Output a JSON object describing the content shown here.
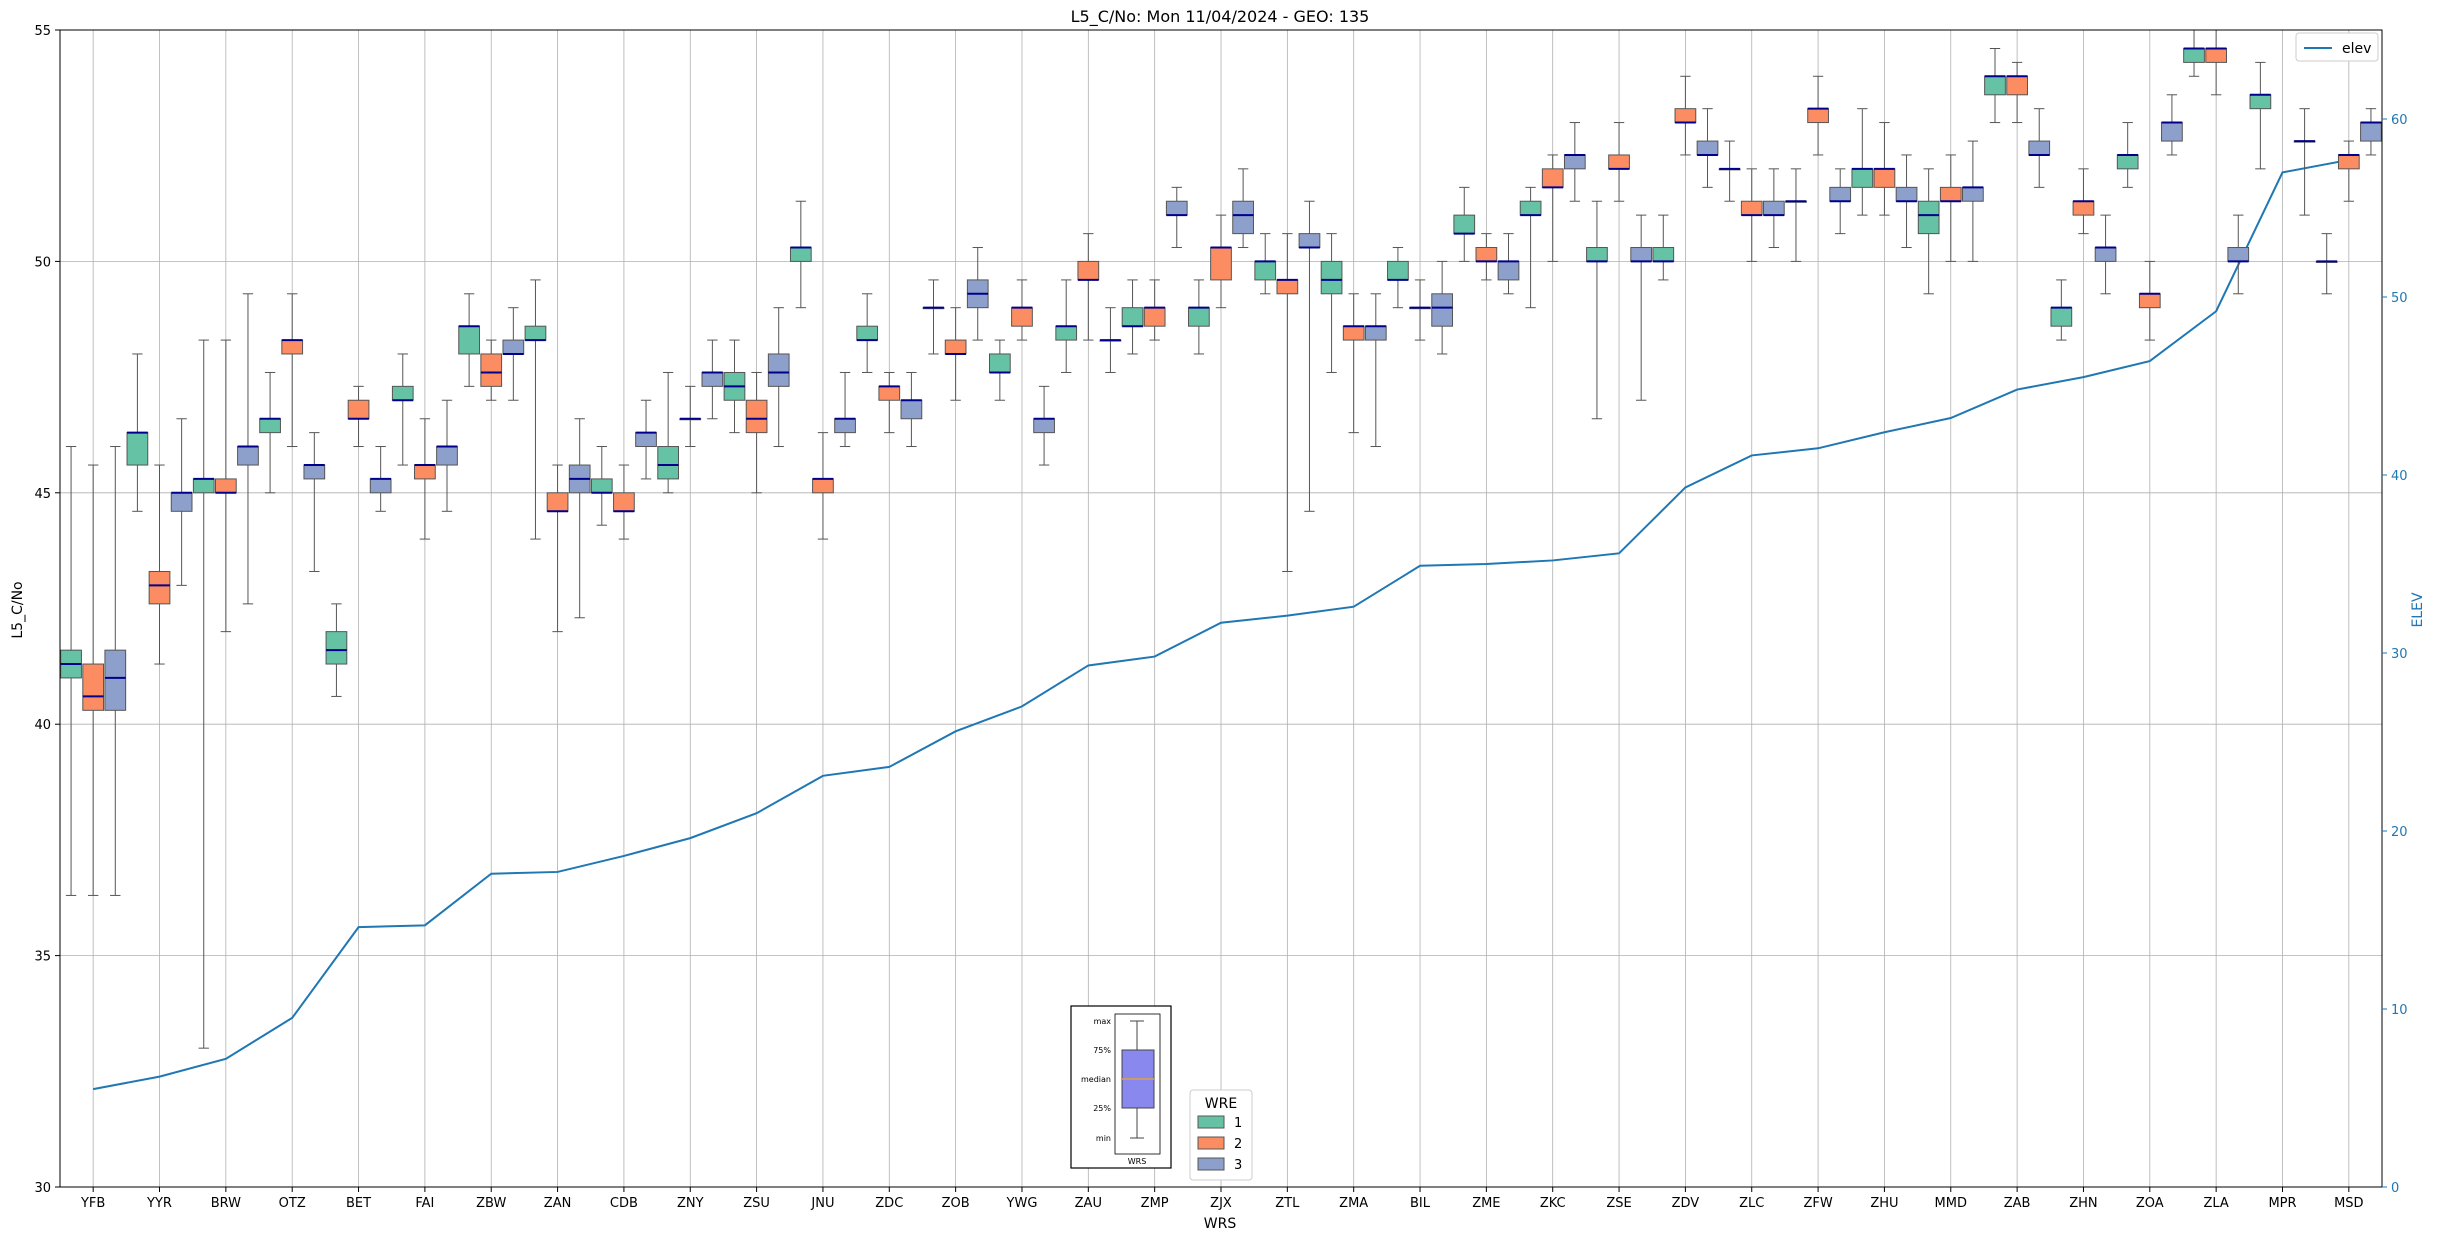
{
  "chart_data": {
    "type": "box",
    "title": "L5_C/No: Mon 11/04/2024 - GEO: 135",
    "xlabel": "WRS",
    "ylabel": "L5_C/No",
    "y2label": "ELEV",
    "ylim": [
      30,
      55
    ],
    "y2lim": [
      0,
      65
    ],
    "yticks": [
      30,
      35,
      40,
      45,
      50,
      55
    ],
    "y2ticks": [
      0,
      10,
      20,
      30,
      40,
      50,
      60
    ],
    "grid": true,
    "categories": [
      "YFB",
      "YYR",
      "BRW",
      "OTZ",
      "BET",
      "FAI",
      "ZBW",
      "ZAN",
      "CDB",
      "ZNY",
      "ZSU",
      "JNU",
      "ZDC",
      "ZOB",
      "YWG",
      "ZAU",
      "ZMP",
      "ZJX",
      "ZTL",
      "ZMA",
      "BIL",
      "ZME",
      "ZKC",
      "ZSE",
      "ZDV",
      "ZLC",
      "ZFW",
      "ZHU",
      "MMD",
      "ZAB",
      "ZHN",
      "ZOA",
      "ZLA",
      "MPR",
      "MSD"
    ],
    "wre_colors": {
      "1": "#66c2a5",
      "2": "#fc8d62",
      "3": "#8da0cb"
    },
    "legend": {
      "title": "WRE",
      "entries": [
        "1",
        "2",
        "3"
      ],
      "position": "bottom-center"
    },
    "elev_legend": {
      "label": "elev",
      "position": "top-right"
    },
    "elev_color": "#1f77b4",
    "elev": [
      5.5,
      6.2,
      7.2,
      9.5,
      14.6,
      14.7,
      17.6,
      17.7,
      18.6,
      19.6,
      21.0,
      23.1,
      23.6,
      25.6,
      27.0,
      29.3,
      29.8,
      31.7,
      32.1,
      32.6,
      34.9,
      35.0,
      35.2,
      35.6,
      39.3,
      41.1,
      41.5,
      42.4,
      43.2,
      44.8,
      45.5,
      46.4,
      49.2,
      57.0,
      57.7
    ],
    "boxes": [
      {
        "station": "YFB",
        "wre": "1",
        "min": 36.3,
        "q1": 41.0,
        "median": 41.3,
        "q3": 41.6,
        "max": 46.0
      },
      {
        "station": "YFB",
        "wre": "2",
        "min": 36.3,
        "q1": 40.3,
        "median": 40.6,
        "q3": 41.3,
        "max": 45.6
      },
      {
        "station": "YFB",
        "wre": "3",
        "min": 36.3,
        "q1": 40.3,
        "median": 41.0,
        "q3": 41.6,
        "max": 46.0
      },
      {
        "station": "YYR",
        "wre": "1",
        "min": 44.6,
        "q1": 45.6,
        "median": 46.3,
        "q3": 46.3,
        "max": 48.0
      },
      {
        "station": "YYR",
        "wre": "2",
        "min": 41.3,
        "q1": 42.6,
        "median": 43.0,
        "q3": 43.3,
        "max": 45.6
      },
      {
        "station": "YYR",
        "wre": "3",
        "min": 43.0,
        "q1": 44.6,
        "median": 45.0,
        "q3": 45.0,
        "max": 46.6
      },
      {
        "station": "BRW",
        "wre": "1",
        "min": 33.0,
        "q1": 45.0,
        "median": 45.3,
        "q3": 45.3,
        "max": 48.3
      },
      {
        "station": "BRW",
        "wre": "2",
        "min": 42.0,
        "q1": 45.0,
        "median": 45.0,
        "q3": 45.3,
        "max": 48.3
      },
      {
        "station": "BRW",
        "wre": "3",
        "min": 42.6,
        "q1": 45.6,
        "median": 46.0,
        "q3": 46.0,
        "max": 49.3
      },
      {
        "station": "OTZ",
        "wre": "1",
        "min": 45.0,
        "q1": 46.3,
        "median": 46.6,
        "q3": 46.6,
        "max": 47.6
      },
      {
        "station": "OTZ",
        "wre": "2",
        "min": 46.0,
        "q1": 48.0,
        "median": 48.3,
        "q3": 48.3,
        "max": 49.3
      },
      {
        "station": "OTZ",
        "wre": "3",
        "min": 43.3,
        "q1": 45.3,
        "median": 45.6,
        "q3": 45.6,
        "max": 46.3
      },
      {
        "station": "BET",
        "wre": "1",
        "min": 40.6,
        "q1": 41.3,
        "median": 41.6,
        "q3": 42.0,
        "max": 42.6
      },
      {
        "station": "BET",
        "wre": "2",
        "min": 46.0,
        "q1": 46.6,
        "median": 46.6,
        "q3": 47.0,
        "max": 47.3
      },
      {
        "station": "BET",
        "wre": "3",
        "min": 44.6,
        "q1": 45.0,
        "median": 45.3,
        "q3": 45.3,
        "max": 46.0
      },
      {
        "station": "FAI",
        "wre": "1",
        "min": 45.6,
        "q1": 47.0,
        "median": 47.0,
        "q3": 47.3,
        "max": 48.0
      },
      {
        "station": "FAI",
        "wre": "2",
        "min": 44.0,
        "q1": 45.3,
        "median": 45.6,
        "q3": 45.6,
        "max": 46.6
      },
      {
        "station": "FAI",
        "wre": "3",
        "min": 44.6,
        "q1": 45.6,
        "median": 46.0,
        "q3": 46.0,
        "max": 47.0
      },
      {
        "station": "ZBW",
        "wre": "1",
        "min": 47.3,
        "q1": 48.0,
        "median": 48.6,
        "q3": 48.6,
        "max": 49.3
      },
      {
        "station": "ZBW",
        "wre": "2",
        "min": 47.0,
        "q1": 47.3,
        "median": 47.6,
        "q3": 48.0,
        "max": 48.3
      },
      {
        "station": "ZBW",
        "wre": "3",
        "min": 47.0,
        "q1": 48.0,
        "median": 48.0,
        "q3": 48.3,
        "max": 49.0
      },
      {
        "station": "ZAN",
        "wre": "1",
        "min": 44.0,
        "q1": 48.3,
        "median": 48.3,
        "q3": 48.6,
        "max": 49.6
      },
      {
        "station": "ZAN",
        "wre": "2",
        "min": 42.0,
        "q1": 44.6,
        "median": 44.6,
        "q3": 45.0,
        "max": 45.6
      },
      {
        "station": "ZAN",
        "wre": "3",
        "min": 42.3,
        "q1": 45.0,
        "median": 45.3,
        "q3": 45.6,
        "max": 46.6
      },
      {
        "station": "CDB",
        "wre": "1",
        "min": 44.3,
        "q1": 45.0,
        "median": 45.0,
        "q3": 45.3,
        "max": 46.0
      },
      {
        "station": "CDB",
        "wre": "2",
        "min": 44.0,
        "q1": 44.6,
        "median": 44.6,
        "q3": 45.0,
        "max": 45.6
      },
      {
        "station": "CDB",
        "wre": "3",
        "min": 45.3,
        "q1": 46.0,
        "median": 46.3,
        "q3": 46.3,
        "max": 47.0
      },
      {
        "station": "ZNY",
        "wre": "1",
        "min": 45.0,
        "q1": 45.3,
        "median": 45.6,
        "q3": 46.0,
        "max": 47.6
      },
      {
        "station": "ZNY",
        "wre": "2",
        "min": 46.0,
        "q1": 46.6,
        "median": 46.6,
        "q3": 46.6,
        "max": 47.3
      },
      {
        "station": "ZNY",
        "wre": "3",
        "min": 46.6,
        "q1": 47.3,
        "median": 47.6,
        "q3": 47.6,
        "max": 48.3
      },
      {
        "station": "ZSU",
        "wre": "1",
        "min": 46.3,
        "q1": 47.0,
        "median": 47.3,
        "q3": 47.6,
        "max": 48.3
      },
      {
        "station": "ZSU",
        "wre": "2",
        "min": 45.0,
        "q1": 46.3,
        "median": 46.6,
        "q3": 47.0,
        "max": 47.6
      },
      {
        "station": "ZSU",
        "wre": "3",
        "min": 46.0,
        "q1": 47.3,
        "median": 47.6,
        "q3": 48.0,
        "max": 49.0
      },
      {
        "station": "JNU",
        "wre": "1",
        "min": 49.0,
        "q1": 50.0,
        "median": 50.3,
        "q3": 50.3,
        "max": 51.3
      },
      {
        "station": "JNU",
        "wre": "2",
        "min": 44.0,
        "q1": 45.0,
        "median": 45.3,
        "q3": 45.3,
        "max": 46.3
      },
      {
        "station": "JNU",
        "wre": "3",
        "min": 46.0,
        "q1": 46.3,
        "median": 46.6,
        "q3": 46.6,
        "max": 47.6
      },
      {
        "station": "ZDC",
        "wre": "1",
        "min": 47.6,
        "q1": 48.3,
        "median": 48.3,
        "q3": 48.6,
        "max": 49.3
      },
      {
        "station": "ZDC",
        "wre": "2",
        "min": 46.3,
        "q1": 47.0,
        "median": 47.3,
        "q3": 47.3,
        "max": 47.6
      },
      {
        "station": "ZDC",
        "wre": "3",
        "min": 46.0,
        "q1": 46.6,
        "median": 47.0,
        "q3": 47.0,
        "max": 47.6
      },
      {
        "station": "ZOB",
        "wre": "1",
        "min": 48.0,
        "q1": 49.0,
        "median": 49.0,
        "q3": 49.0,
        "max": 49.6
      },
      {
        "station": "ZOB",
        "wre": "2",
        "min": 47.0,
        "q1": 48.0,
        "median": 48.0,
        "q3": 48.3,
        "max": 49.0
      },
      {
        "station": "ZOB",
        "wre": "3",
        "min": 48.3,
        "q1": 49.0,
        "median": 49.3,
        "q3": 49.6,
        "max": 50.3
      },
      {
        "station": "YWG",
        "wre": "1",
        "min": 47.0,
        "q1": 47.6,
        "median": 47.6,
        "q3": 48.0,
        "max": 48.3
      },
      {
        "station": "YWG",
        "wre": "2",
        "min": 48.3,
        "q1": 48.6,
        "median": 49.0,
        "q3": 49.0,
        "max": 49.6
      },
      {
        "station": "YWG",
        "wre": "3",
        "min": 45.6,
        "q1": 46.3,
        "median": 46.6,
        "q3": 46.6,
        "max": 47.3
      },
      {
        "station": "ZAU",
        "wre": "1",
        "min": 47.6,
        "q1": 48.3,
        "median": 48.6,
        "q3": 48.6,
        "max": 49.6
      },
      {
        "station": "ZAU",
        "wre": "2",
        "min": 48.3,
        "q1": 49.6,
        "median": 49.6,
        "q3": 50.0,
        "max": 50.6
      },
      {
        "station": "ZAU",
        "wre": "3",
        "min": 47.6,
        "q1": 48.3,
        "median": 48.3,
        "q3": 48.3,
        "max": 49.0
      },
      {
        "station": "ZMP",
        "wre": "1",
        "min": 48.0,
        "q1": 48.6,
        "median": 48.6,
        "q3": 49.0,
        "max": 49.6
      },
      {
        "station": "ZMP",
        "wre": "2",
        "min": 48.3,
        "q1": 48.6,
        "median": 49.0,
        "q3": 49.0,
        "max": 49.6
      },
      {
        "station": "ZMP",
        "wre": "3",
        "min": 50.3,
        "q1": 51.0,
        "median": 51.0,
        "q3": 51.3,
        "max": 51.6
      },
      {
        "station": "ZJX",
        "wre": "1",
        "min": 48.0,
        "q1": 48.6,
        "median": 49.0,
        "q3": 49.0,
        "max": 49.6
      },
      {
        "station": "ZJX",
        "wre": "2",
        "min": 49.0,
        "q1": 49.6,
        "median": 50.3,
        "q3": 50.3,
        "max": 51.0
      },
      {
        "station": "ZJX",
        "wre": "3",
        "min": 50.3,
        "q1": 50.6,
        "median": 51.0,
        "q3": 51.3,
        "max": 52.0
      },
      {
        "station": "ZTL",
        "wre": "1",
        "min": 49.3,
        "q1": 49.6,
        "median": 50.0,
        "q3": 50.0,
        "max": 50.6
      },
      {
        "station": "ZTL",
        "wre": "2",
        "min": 43.3,
        "q1": 49.3,
        "median": 49.6,
        "q3": 49.6,
        "max": 50.6
      },
      {
        "station": "ZTL",
        "wre": "3",
        "min": 44.6,
        "q1": 50.3,
        "median": 50.3,
        "q3": 50.6,
        "max": 51.3
      },
      {
        "station": "ZMA",
        "wre": "1",
        "min": 47.6,
        "q1": 49.3,
        "median": 49.6,
        "q3": 50.0,
        "max": 50.6
      },
      {
        "station": "ZMA",
        "wre": "2",
        "min": 46.3,
        "q1": 48.3,
        "median": 48.6,
        "q3": 48.6,
        "max": 49.3
      },
      {
        "station": "ZMA",
        "wre": "3",
        "min": 46.0,
        "q1": 48.3,
        "median": 48.6,
        "q3": 48.6,
        "max": 49.3
      },
      {
        "station": "BIL",
        "wre": "1",
        "min": 49.0,
        "q1": 49.6,
        "median": 49.6,
        "q3": 50.0,
        "max": 50.3
      },
      {
        "station": "BIL",
        "wre": "2",
        "min": 48.3,
        "q1": 49.0,
        "median": 49.0,
        "q3": 49.0,
        "max": 49.6
      },
      {
        "station": "BIL",
        "wre": "3",
        "min": 48.0,
        "q1": 48.6,
        "median": 49.0,
        "q3": 49.3,
        "max": 50.0
      },
      {
        "station": "ZME",
        "wre": "1",
        "min": 50.0,
        "q1": 50.6,
        "median": 50.6,
        "q3": 51.0,
        "max": 51.6
      },
      {
        "station": "ZME",
        "wre": "2",
        "min": 49.6,
        "q1": 50.0,
        "median": 50.0,
        "q3": 50.3,
        "max": 50.6
      },
      {
        "station": "ZME",
        "wre": "3",
        "min": 49.3,
        "q1": 49.6,
        "median": 50.0,
        "q3": 50.0,
        "max": 50.6
      },
      {
        "station": "ZKC",
        "wre": "1",
        "min": 49.0,
        "q1": 51.0,
        "median": 51.0,
        "q3": 51.3,
        "max": 51.6
      },
      {
        "station": "ZKC",
        "wre": "2",
        "min": 50.0,
        "q1": 51.6,
        "median": 51.6,
        "q3": 52.0,
        "max": 52.3
      },
      {
        "station": "ZKC",
        "wre": "3",
        "min": 51.3,
        "q1": 52.0,
        "median": 52.3,
        "q3": 52.3,
        "max": 53.0
      },
      {
        "station": "ZSE",
        "wre": "1",
        "min": 46.6,
        "q1": 50.0,
        "median": 50.0,
        "q3": 50.3,
        "max": 51.3
      },
      {
        "station": "ZSE",
        "wre": "2",
        "min": 51.3,
        "q1": 52.0,
        "median": 52.0,
        "q3": 52.3,
        "max": 53.0
      },
      {
        "station": "ZSE",
        "wre": "3",
        "min": 47.0,
        "q1": 50.0,
        "median": 50.0,
        "q3": 50.3,
        "max": 51.0
      },
      {
        "station": "ZDV",
        "wre": "1",
        "min": 49.6,
        "q1": 50.0,
        "median": 50.0,
        "q3": 50.3,
        "max": 51.0
      },
      {
        "station": "ZDV",
        "wre": "2",
        "min": 52.3,
        "q1": 53.0,
        "median": 53.0,
        "q3": 53.3,
        "max": 54.0
      },
      {
        "station": "ZDV",
        "wre": "3",
        "min": 51.6,
        "q1": 52.3,
        "median": 52.3,
        "q3": 52.6,
        "max": 53.3
      },
      {
        "station": "ZLC",
        "wre": "1",
        "min": 51.3,
        "q1": 52.0,
        "median": 52.0,
        "q3": 52.0,
        "max": 52.6
      },
      {
        "station": "ZLC",
        "wre": "2",
        "min": 50.0,
        "q1": 51.0,
        "median": 51.0,
        "q3": 51.3,
        "max": 52.0
      },
      {
        "station": "ZLC",
        "wre": "3",
        "min": 50.3,
        "q1": 51.0,
        "median": 51.0,
        "q3": 51.3,
        "max": 52.0
      },
      {
        "station": "ZFW",
        "wre": "1",
        "min": 50.0,
        "q1": 51.3,
        "median": 51.3,
        "q3": 51.3,
        "max": 52.0
      },
      {
        "station": "ZFW",
        "wre": "2",
        "min": 52.3,
        "q1": 53.0,
        "median": 53.3,
        "q3": 53.3,
        "max": 54.0
      },
      {
        "station": "ZFW",
        "wre": "3",
        "min": 50.6,
        "q1": 51.3,
        "median": 51.3,
        "q3": 51.6,
        "max": 52.0
      },
      {
        "station": "ZHU",
        "wre": "1",
        "min": 51.0,
        "q1": 51.6,
        "median": 52.0,
        "q3": 52.0,
        "max": 53.3
      },
      {
        "station": "ZHU",
        "wre": "2",
        "min": 51.0,
        "q1": 51.6,
        "median": 52.0,
        "q3": 52.0,
        "max": 53.0
      },
      {
        "station": "ZHU",
        "wre": "3",
        "min": 50.3,
        "q1": 51.3,
        "median": 51.3,
        "q3": 51.6,
        "max": 52.3
      },
      {
        "station": "MMD",
        "wre": "1",
        "min": 49.3,
        "q1": 50.6,
        "median": 51.0,
        "q3": 51.3,
        "max": 52.0
      },
      {
        "station": "MMD",
        "wre": "2",
        "min": 50.0,
        "q1": 51.3,
        "median": 51.3,
        "q3": 51.6,
        "max": 52.3
      },
      {
        "station": "MMD",
        "wre": "3",
        "min": 50.0,
        "q1": 51.3,
        "median": 51.6,
        "q3": 51.6,
        "max": 52.6
      },
      {
        "station": "ZAB",
        "wre": "1",
        "min": 53.0,
        "q1": 53.6,
        "median": 54.0,
        "q3": 54.0,
        "max": 54.6
      },
      {
        "station": "ZAB",
        "wre": "2",
        "min": 53.0,
        "q1": 53.6,
        "median": 54.0,
        "q3": 54.0,
        "max": 54.3
      },
      {
        "station": "ZAB",
        "wre": "3",
        "min": 51.6,
        "q1": 52.3,
        "median": 52.3,
        "q3": 52.6,
        "max": 53.3
      },
      {
        "station": "ZHN",
        "wre": "1",
        "min": 48.3,
        "q1": 48.6,
        "median": 49.0,
        "q3": 49.0,
        "max": 49.6
      },
      {
        "station": "ZHN",
        "wre": "2",
        "min": 50.6,
        "q1": 51.0,
        "median": 51.3,
        "q3": 51.3,
        "max": 52.0
      },
      {
        "station": "ZHN",
        "wre": "3",
        "min": 49.3,
        "q1": 50.0,
        "median": 50.3,
        "q3": 50.3,
        "max": 51.0
      },
      {
        "station": "ZOA",
        "wre": "1",
        "min": 51.6,
        "q1": 52.0,
        "median": 52.3,
        "q3": 52.3,
        "max": 53.0
      },
      {
        "station": "ZOA",
        "wre": "2",
        "min": 48.3,
        "q1": 49.0,
        "median": 49.3,
        "q3": 49.3,
        "max": 50.0
      },
      {
        "station": "ZOA",
        "wre": "3",
        "min": 52.3,
        "q1": 52.6,
        "median": 53.0,
        "q3": 53.0,
        "max": 53.6
      },
      {
        "station": "ZLA",
        "wre": "1",
        "min": 54.0,
        "q1": 54.3,
        "median": 54.6,
        "q3": 54.6,
        "max": 55.0
      },
      {
        "station": "ZLA",
        "wre": "2",
        "min": 53.6,
        "q1": 54.3,
        "median": 54.6,
        "q3": 54.6,
        "max": 55.0
      },
      {
        "station": "ZLA",
        "wre": "3",
        "min": 49.3,
        "q1": 50.0,
        "median": 50.0,
        "q3": 50.3,
        "max": 51.0
      },
      {
        "station": "MPR",
        "wre": "1",
        "min": 52.0,
        "q1": 53.3,
        "median": 53.6,
        "q3": 53.6,
        "max": 54.3
      },
      {
        "station": "MPR",
        "wre": "3",
        "min": 51.0,
        "q1": 52.6,
        "median": 52.6,
        "q3": 52.6,
        "max": 53.3
      },
      {
        "station": "MSD",
        "wre": "1",
        "min": 49.3,
        "q1": 50.0,
        "median": 50.0,
        "q3": 50.0,
        "max": 50.6
      },
      {
        "station": "MSD",
        "wre": "2",
        "min": 51.3,
        "q1": 52.0,
        "median": 52.3,
        "q3": 52.3,
        "max": 52.6
      },
      {
        "station": "MSD",
        "wre": "3",
        "min": 52.3,
        "q1": 52.6,
        "median": 53.0,
        "q3": 53.0,
        "max": 53.3
      }
    ],
    "inset": {
      "labels": [
        "max",
        "75%",
        "median",
        "25%",
        "min"
      ],
      "xlabel": "WRS"
    }
  }
}
